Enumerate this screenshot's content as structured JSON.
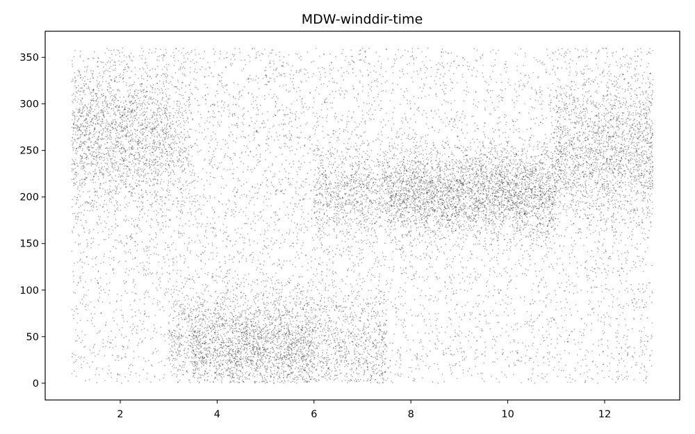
{
  "chart_data": {
    "type": "scatter",
    "title": "MDW-winddir-time",
    "xlabel": "",
    "ylabel": "",
    "xlim": [
      0.45,
      13.55
    ],
    "ylim": [
      -18,
      378
    ],
    "x_ticks": [
      2,
      4,
      6,
      8,
      10,
      12
    ],
    "y_ticks": [
      0,
      50,
      100,
      150,
      200,
      250,
      300,
      350
    ],
    "x_tick_labels": [
      "2",
      "4",
      "6",
      "8",
      "10",
      "12"
    ],
    "y_tick_labels": [
      "0",
      "50",
      "100",
      "150",
      "200",
      "250",
      "300",
      "350"
    ],
    "grid": false,
    "legend": "none",
    "marker_color": "#000000",
    "marker_alpha": 0.3,
    "x_range": [
      1,
      13
    ],
    "y_range": [
      0,
      360
    ],
    "point_count": 17000,
    "density_clusters": [
      {
        "x_range": [
          1,
          3.5
        ],
        "y_center": 265,
        "y_spread": 40
      },
      {
        "x_range": [
          6,
          11
        ],
        "y_center": 205,
        "y_spread": 25
      },
      {
        "x_range": [
          11,
          13
        ],
        "y_center": 250,
        "y_spread": 40
      },
      {
        "x_range": [
          3,
          7.5
        ],
        "y_center": 40,
        "y_spread": 30
      }
    ]
  }
}
